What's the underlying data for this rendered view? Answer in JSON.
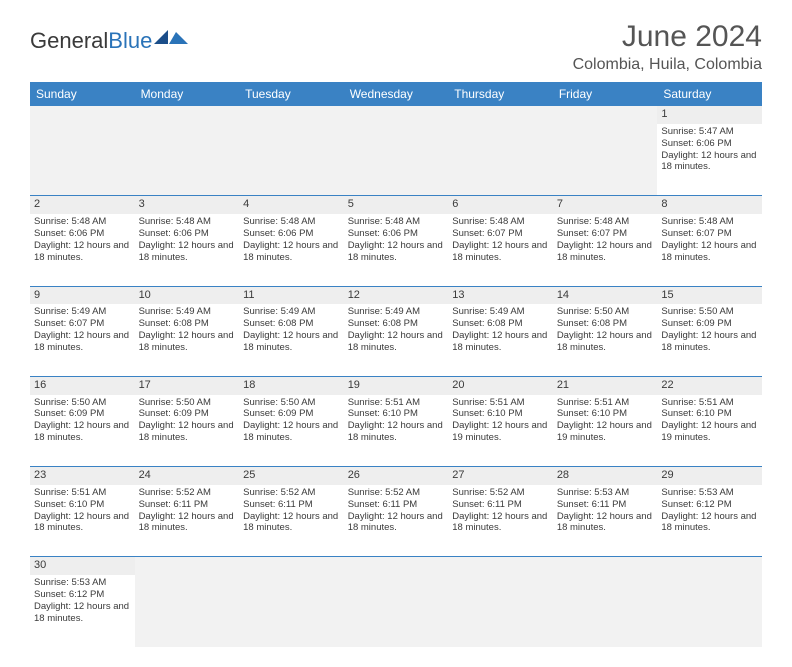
{
  "logo": {
    "text1": "General",
    "text2": "Blue"
  },
  "title": "June 2024",
  "location": "Colombia, Huila, Colombia",
  "colors": {
    "header_bg": "#3a82c4",
    "header_text": "#ffffff",
    "daynum_bg": "#eeeeee",
    "row_border": "#3a82c4",
    "text": "#3a3a3a",
    "title_text": "#555555",
    "logo_blue": "#2a73b8"
  },
  "day_headers": [
    "Sunday",
    "Monday",
    "Tuesday",
    "Wednesday",
    "Thursday",
    "Friday",
    "Saturday"
  ],
  "weeks": [
    {
      "nums": [
        "",
        "",
        "",
        "",
        "",
        "",
        "1"
      ],
      "cells": [
        null,
        null,
        null,
        null,
        null,
        null,
        {
          "sunrise": "5:47 AM",
          "sunset": "6:06 PM",
          "daylight": "12 hours and 18 minutes."
        }
      ]
    },
    {
      "nums": [
        "2",
        "3",
        "4",
        "5",
        "6",
        "7",
        "8"
      ],
      "cells": [
        {
          "sunrise": "5:48 AM",
          "sunset": "6:06 PM",
          "daylight": "12 hours and 18 minutes."
        },
        {
          "sunrise": "5:48 AM",
          "sunset": "6:06 PM",
          "daylight": "12 hours and 18 minutes."
        },
        {
          "sunrise": "5:48 AM",
          "sunset": "6:06 PM",
          "daylight": "12 hours and 18 minutes."
        },
        {
          "sunrise": "5:48 AM",
          "sunset": "6:06 PM",
          "daylight": "12 hours and 18 minutes."
        },
        {
          "sunrise": "5:48 AM",
          "sunset": "6:07 PM",
          "daylight": "12 hours and 18 minutes."
        },
        {
          "sunrise": "5:48 AM",
          "sunset": "6:07 PM",
          "daylight": "12 hours and 18 minutes."
        },
        {
          "sunrise": "5:48 AM",
          "sunset": "6:07 PM",
          "daylight": "12 hours and 18 minutes."
        }
      ]
    },
    {
      "nums": [
        "9",
        "10",
        "11",
        "12",
        "13",
        "14",
        "15"
      ],
      "cells": [
        {
          "sunrise": "5:49 AM",
          "sunset": "6:07 PM",
          "daylight": "12 hours and 18 minutes."
        },
        {
          "sunrise": "5:49 AM",
          "sunset": "6:08 PM",
          "daylight": "12 hours and 18 minutes."
        },
        {
          "sunrise": "5:49 AM",
          "sunset": "6:08 PM",
          "daylight": "12 hours and 18 minutes."
        },
        {
          "sunrise": "5:49 AM",
          "sunset": "6:08 PM",
          "daylight": "12 hours and 18 minutes."
        },
        {
          "sunrise": "5:49 AM",
          "sunset": "6:08 PM",
          "daylight": "12 hours and 18 minutes."
        },
        {
          "sunrise": "5:50 AM",
          "sunset": "6:08 PM",
          "daylight": "12 hours and 18 minutes."
        },
        {
          "sunrise": "5:50 AM",
          "sunset": "6:09 PM",
          "daylight": "12 hours and 18 minutes."
        }
      ]
    },
    {
      "nums": [
        "16",
        "17",
        "18",
        "19",
        "20",
        "21",
        "22"
      ],
      "cells": [
        {
          "sunrise": "5:50 AM",
          "sunset": "6:09 PM",
          "daylight": "12 hours and 18 minutes."
        },
        {
          "sunrise": "5:50 AM",
          "sunset": "6:09 PM",
          "daylight": "12 hours and 18 minutes."
        },
        {
          "sunrise": "5:50 AM",
          "sunset": "6:09 PM",
          "daylight": "12 hours and 18 minutes."
        },
        {
          "sunrise": "5:51 AM",
          "sunset": "6:10 PM",
          "daylight": "12 hours and 18 minutes."
        },
        {
          "sunrise": "5:51 AM",
          "sunset": "6:10 PM",
          "daylight": "12 hours and 19 minutes."
        },
        {
          "sunrise": "5:51 AM",
          "sunset": "6:10 PM",
          "daylight": "12 hours and 19 minutes."
        },
        {
          "sunrise": "5:51 AM",
          "sunset": "6:10 PM",
          "daylight": "12 hours and 19 minutes."
        }
      ]
    },
    {
      "nums": [
        "23",
        "24",
        "25",
        "26",
        "27",
        "28",
        "29"
      ],
      "cells": [
        {
          "sunrise": "5:51 AM",
          "sunset": "6:10 PM",
          "daylight": "12 hours and 18 minutes."
        },
        {
          "sunrise": "5:52 AM",
          "sunset": "6:11 PM",
          "daylight": "12 hours and 18 minutes."
        },
        {
          "sunrise": "5:52 AM",
          "sunset": "6:11 PM",
          "daylight": "12 hours and 18 minutes."
        },
        {
          "sunrise": "5:52 AM",
          "sunset": "6:11 PM",
          "daylight": "12 hours and 18 minutes."
        },
        {
          "sunrise": "5:52 AM",
          "sunset": "6:11 PM",
          "daylight": "12 hours and 18 minutes."
        },
        {
          "sunrise": "5:53 AM",
          "sunset": "6:11 PM",
          "daylight": "12 hours and 18 minutes."
        },
        {
          "sunrise": "5:53 AM",
          "sunset": "6:12 PM",
          "daylight": "12 hours and 18 minutes."
        }
      ]
    },
    {
      "nums": [
        "30",
        "",
        "",
        "",
        "",
        "",
        ""
      ],
      "cells": [
        {
          "sunrise": "5:53 AM",
          "sunset": "6:12 PM",
          "daylight": "12 hours and 18 minutes."
        },
        null,
        null,
        null,
        null,
        null,
        null
      ]
    }
  ],
  "labels": {
    "sunrise": "Sunrise:",
    "sunset": "Sunset:",
    "daylight": "Daylight:"
  }
}
